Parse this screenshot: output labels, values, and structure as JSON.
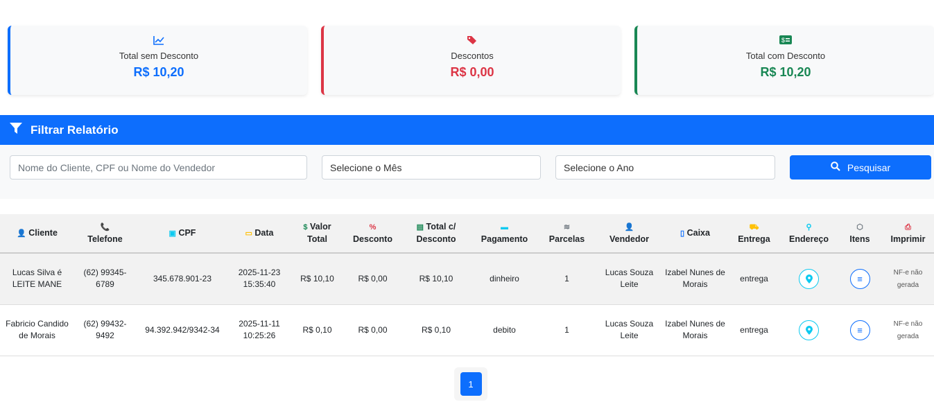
{
  "summary": [
    {
      "icon": "chart-line-icon",
      "label": "Total sem Desconto",
      "value": "R$ 10,20",
      "color": "#0d6efd"
    },
    {
      "icon": "tags-icon",
      "label": "Descontos",
      "value": "R$ 0,00",
      "color": "#dc3545"
    },
    {
      "icon": "money-bill-icon",
      "label": "Total com Desconto",
      "value": "R$ 10,20",
      "color": "#198754"
    }
  ],
  "filter": {
    "title": "Filtrar Relatório",
    "search_placeholder": "Nome do Cliente, CPF ou Nome do Vendedor",
    "month": "Selecione o Mês",
    "year": "Selecione o Ano",
    "button": "Pesquisar"
  },
  "table": {
    "headers": [
      {
        "icon": "👤",
        "color": "#0d6efd",
        "l1": "Cliente",
        "l2": ""
      },
      {
        "icon": "📞",
        "color": "#198754",
        "l1": "",
        "l2": "Telefone"
      },
      {
        "icon": "▣",
        "color": "#0dcaf0",
        "l1": "CPF",
        "l2": ""
      },
      {
        "icon": "▭",
        "color": "#ffc107",
        "l1": "Data",
        "l2": ""
      },
      {
        "icon": "$",
        "color": "#198754",
        "l1": "Valor",
        "l2": "Total"
      },
      {
        "icon": "%",
        "color": "#dc3545",
        "l1": "",
        "l2": "Desconto"
      },
      {
        "icon": "▤",
        "color": "#198754",
        "l1": "Total c/",
        "l2": "Desconto"
      },
      {
        "icon": "▬",
        "color": "#0dcaf0",
        "l1": "",
        "l2": "Pagamento"
      },
      {
        "icon": "≋",
        "color": "#6c757d",
        "l1": "",
        "l2": "Parcelas"
      },
      {
        "icon": "👤",
        "color": "#0d6efd",
        "l1": "",
        "l2": "Vendedor"
      },
      {
        "icon": "▯",
        "color": "#0d6efd",
        "l1": "Caixa",
        "l2": ""
      },
      {
        "icon": "⛟",
        "color": "#ffc107",
        "l1": "",
        "l2": "Entrega"
      },
      {
        "icon": "⚲",
        "color": "#0dcaf0",
        "l1": "",
        "l2": "Endereço"
      },
      {
        "icon": "⬡",
        "color": "#6c757d",
        "l1": "",
        "l2": "Itens"
      },
      {
        "icon": "⎙",
        "color": "#dc3545",
        "l1": "",
        "l2": "Imprimir"
      }
    ],
    "rows": [
      {
        "cliente": "Lucas Silva é LEITE MANE",
        "telefone": "(62) 99345-6789",
        "cpf": "345.678.901-23",
        "data": "2025-11-23 15:35:40",
        "valor": "R$ 10,10",
        "desconto": "R$ 0,00",
        "total": "R$ 10,10",
        "pagamento": "dinheiro",
        "parcelas": "1",
        "vendedor": "Lucas Souza Leite",
        "caixa": "Izabel Nunes de Morais",
        "entrega": "entrega",
        "nf": "NF-e não gerada"
      },
      {
        "cliente": "Fabricio Candido de Morais",
        "telefone": "(62) 99432-9492",
        "cpf": "94.392.942/9342-34",
        "data": "2025-11-11 10:25:26",
        "valor": "R$ 0,10",
        "desconto": "R$ 0,00",
        "total": "R$ 0,10",
        "pagamento": "debito",
        "parcelas": "1",
        "vendedor": "Lucas Souza Leite",
        "caixa": "Izabel Nunes de Morais",
        "entrega": "entrega",
        "nf": "NF-e não gerada"
      }
    ]
  },
  "pagination": {
    "current": "1"
  }
}
